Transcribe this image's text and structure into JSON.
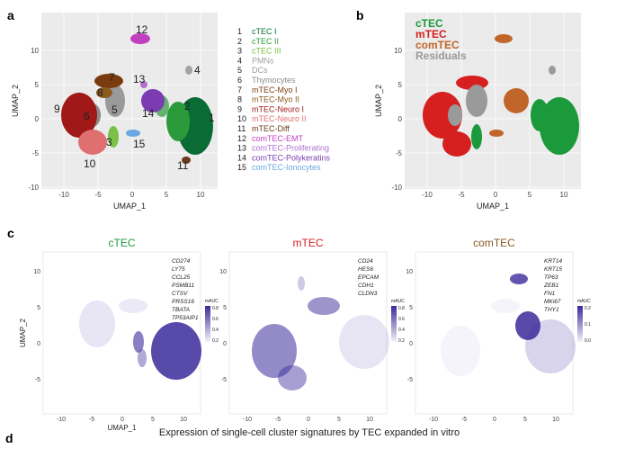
{
  "figure": {
    "caption_d": "Expression of single-cell cluster signatures by TEC expanded in vitro"
  },
  "panels": {
    "a": {
      "letter": "a",
      "xlabel": "UMAP_1",
      "ylabel": "UMAP_2",
      "xticks": [
        "-10",
        "-5",
        "0",
        "5",
        "10"
      ],
      "yticks": [
        "10",
        "5",
        "0",
        "-5",
        "-10"
      ],
      "legend": [
        {
          "num": "1",
          "label": "cTEC I",
          "color": "#0a6b35"
        },
        {
          "num": "2",
          "label": "cTEC II",
          "color": "#2a9a3a"
        },
        {
          "num": "3",
          "label": "cTEC III",
          "color": "#7cc04a"
        },
        {
          "num": "4",
          "label": "PMNs",
          "color": "#a3a3a3"
        },
        {
          "num": "5",
          "label": "DCs",
          "color": "#9a9a9a"
        },
        {
          "num": "6",
          "label": "Thymocytes",
          "color": "#8c8c8c"
        },
        {
          "num": "7",
          "label": "mTEC-Myo I",
          "color": "#7a3b0f"
        },
        {
          "num": "8",
          "label": "mTEC-Myo II",
          "color": "#8b5a1e"
        },
        {
          "num": "9",
          "label": "mTEC-Neuro I",
          "color": "#a01818"
        },
        {
          "num": "10",
          "label": "mTEC-Neuro II",
          "color": "#e07070"
        },
        {
          "num": "11",
          "label": "mTEC-Diff",
          "color": "#6b3a1a"
        },
        {
          "num": "12",
          "label": "comTEC-EMT",
          "color": "#c040c0"
        },
        {
          "num": "13",
          "label": "comTEC-Proliferating",
          "color": "#b070d0"
        },
        {
          "num": "14",
          "label": "comTEC-Polykeratins",
          "color": "#7a3cb0"
        },
        {
          "num": "15",
          "label": "comTEC-Ionocytes",
          "color": "#6aa8e0"
        }
      ],
      "cluster_labels": [
        "1",
        "2",
        "3",
        "4",
        "5",
        "6",
        "7",
        "8",
        "9",
        "10",
        "11",
        "12",
        "13",
        "14",
        "15"
      ]
    },
    "b": {
      "letter": "b",
      "xlabel": "UMAP_1",
      "ylabel": "UMAP_2",
      "xticks": [
        "-10",
        "-5",
        "0",
        "5",
        "10"
      ],
      "yticks": [
        "10",
        "5",
        "0",
        "-5",
        "-10"
      ],
      "legend": [
        {
          "label": "cTEC",
          "color": "#1a9a3a"
        },
        {
          "label": "mTEC",
          "color": "#d62020"
        },
        {
          "label": "comTEC",
          "color": "#c0662a"
        },
        {
          "label": "Residuals",
          "color": "#9a9a9a"
        }
      ]
    },
    "c": {
      "letter": "c",
      "subplots": [
        {
          "title": "cTEC",
          "title_color": "#1a9a3a",
          "genes": [
            "CD274",
            "LY75",
            "CCL25",
            "PSMB11",
            "CTSV",
            "PRSS16",
            "TBATA",
            "TP53AIP1"
          ],
          "scale_title": "mAUC",
          "scale_ticks": [
            "0.8",
            "0.6",
            "0.4",
            "0.2"
          ],
          "xlabel": "UMAP_1",
          "ylabel": "UMAP_2"
        },
        {
          "title": "mTEC",
          "title_color": "#d62020",
          "genes": [
            "CD24",
            "HES6",
            "EPCAM",
            "CDH1",
            "CLDN3"
          ],
          "scale_title": "mAUC",
          "scale_ticks": [
            "0.8",
            "0.6",
            "0.4",
            "0.2"
          ],
          "xlabel": "",
          "ylabel": ""
        },
        {
          "title": "comTEC",
          "title_color": "#8a5a1e",
          "genes": [
            "KRT14",
            "KRT15",
            "TP63",
            "ZEB1",
            "FN1",
            "MKi67",
            "THY1"
          ],
          "scale_title": "mAUC",
          "scale_ticks": [
            "0.2",
            "0.1",
            "0.0"
          ],
          "xlabel": "",
          "ylabel": ""
        }
      ],
      "xticks": [
        "-10",
        "-5",
        "0",
        "5",
        "10"
      ],
      "yticks": [
        "10",
        "5",
        "0",
        "-5"
      ]
    },
    "d": {
      "letter": "d"
    }
  }
}
